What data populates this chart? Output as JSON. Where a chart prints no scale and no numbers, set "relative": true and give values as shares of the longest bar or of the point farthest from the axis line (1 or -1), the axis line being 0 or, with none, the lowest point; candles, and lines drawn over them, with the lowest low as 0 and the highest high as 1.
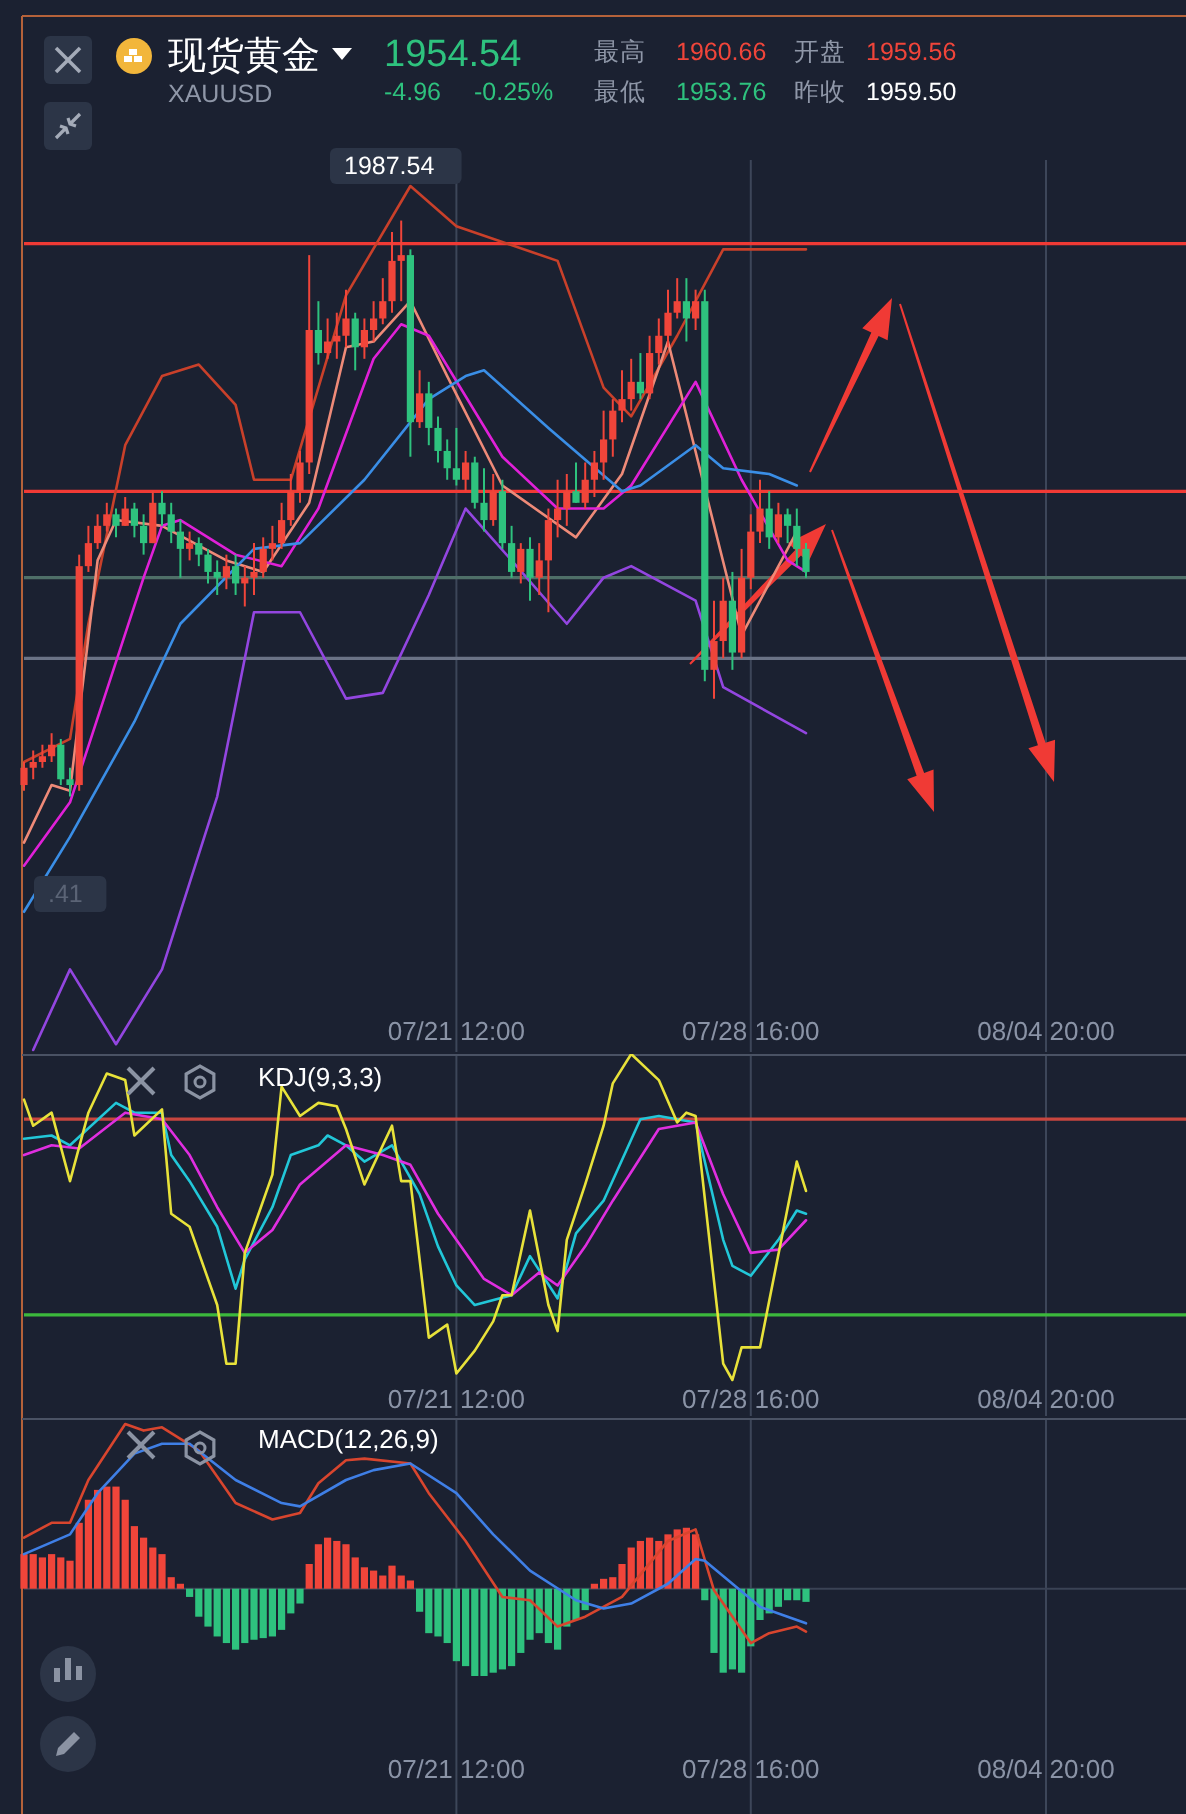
{
  "chart_data": [
    {
      "type": "candlestick",
      "title": "现货黄金",
      "subtitle": "XAUUSD",
      "relative": true,
      "grid": "x",
      "categories": [
        null,
        null,
        null,
        null,
        null,
        null,
        null,
        null,
        null,
        null,
        null,
        null,
        null,
        null,
        null,
        null,
        null,
        null,
        null,
        null,
        null,
        null,
        null,
        null,
        null,
        null,
        null,
        null,
        null,
        null,
        null,
        null,
        null,
        null,
        null,
        null,
        null,
        null,
        null,
        null,
        null,
        null,
        null,
        null,
        null,
        null,
        null,
        "07/21 12:00",
        null,
        null,
        null,
        null,
        null,
        null,
        null,
        null,
        null,
        null,
        null,
        null,
        null,
        null,
        null,
        null,
        null,
        null,
        null,
        null,
        null,
        null,
        null,
        null,
        null,
        null,
        null,
        null,
        null,
        null,
        null,
        "07/28 16:00",
        null,
        null,
        null,
        null,
        null,
        null
      ],
      "ohlc": [
        [
          0.02,
          0.06,
          0.01,
          0.05
        ],
        [
          0.05,
          0.08,
          0.03,
          0.06
        ],
        [
          0.06,
          0.09,
          0.05,
          0.07
        ],
        [
          0.07,
          0.11,
          0.06,
          0.09
        ],
        [
          0.09,
          0.1,
          0.02,
          0.03
        ],
        [
          0.03,
          0.05,
          0,
          0.02
        ],
        [
          0.02,
          0.42,
          0.01,
          0.4
        ],
        [
          0.4,
          0.47,
          0.39,
          0.44
        ],
        [
          0.44,
          0.49,
          0.43,
          0.47
        ],
        [
          0.47,
          0.51,
          0.46,
          0.49
        ],
        [
          0.49,
          0.5,
          0.45,
          0.47
        ],
        [
          0.47,
          0.52,
          0.47,
          0.5
        ],
        [
          0.5,
          0.51,
          0.45,
          0.47
        ],
        [
          0.47,
          0.49,
          0.42,
          0.44
        ],
        [
          0.44,
          0.53,
          0.44,
          0.51
        ],
        [
          0.51,
          0.53,
          0.47,
          0.49
        ],
        [
          0.49,
          0.51,
          0.44,
          0.46
        ],
        [
          0.46,
          0.48,
          0.38,
          0.43
        ],
        [
          0.43,
          0.46,
          0.41,
          0.44
        ],
        [
          0.44,
          0.45,
          0.4,
          0.42
        ],
        [
          0.42,
          0.43,
          0.37,
          0.39
        ],
        [
          0.39,
          0.41,
          0.35,
          0.38
        ],
        [
          0.38,
          0.42,
          0.36,
          0.4
        ],
        [
          0.4,
          0.42,
          0.35,
          0.37
        ],
        [
          0.37,
          0.4,
          0.33,
          0.38
        ],
        [
          0.38,
          0.44,
          0.35,
          0.39
        ],
        [
          0.39,
          0.45,
          0.38,
          0.43
        ],
        [
          0.43,
          0.47,
          0.41,
          0.44
        ],
        [
          0.44,
          0.51,
          0.43,
          0.48
        ],
        [
          0.48,
          0.56,
          0.47,
          0.53
        ],
        [
          0.53,
          0.6,
          0.51,
          0.58
        ],
        [
          0.58,
          0.94,
          0.56,
          0.81
        ],
        [
          0.81,
          0.86,
          0.75,
          0.77
        ],
        [
          0.77,
          0.83,
          0.76,
          0.79
        ],
        [
          0.79,
          0.84,
          0.76,
          0.8
        ],
        [
          0.8,
          0.88,
          0.78,
          0.83
        ],
        [
          0.83,
          0.84,
          0.74,
          0.78
        ],
        [
          0.78,
          0.83,
          0.76,
          0.81
        ],
        [
          0.81,
          0.86,
          0.79,
          0.83
        ],
        [
          0.83,
          0.9,
          0.82,
          0.86
        ],
        [
          0.86,
          0.98,
          0.84,
          0.93
        ],
        [
          0.93,
          1,
          0.86,
          0.94
        ],
        [
          0.94,
          0.95,
          0.59,
          0.65
        ],
        [
          0.65,
          0.74,
          0.64,
          0.7
        ],
        [
          0.7,
          0.72,
          0.61,
          0.64
        ],
        [
          0.64,
          0.66,
          0.58,
          0.6
        ],
        [
          0.6,
          0.62,
          0.55,
          0.57
        ],
        [
          0.57,
          0.64,
          0.54,
          0.55
        ],
        [
          0.55,
          0.6,
          0.53,
          0.58
        ],
        [
          0.58,
          0.59,
          0.5,
          0.51
        ],
        [
          0.51,
          0.57,
          0.46,
          0.48
        ],
        [
          0.48,
          0.56,
          0.47,
          0.53
        ],
        [
          0.53,
          0.55,
          0.43,
          0.44
        ],
        [
          0.44,
          0.47,
          0.38,
          0.39
        ],
        [
          0.39,
          0.44,
          0.37,
          0.43
        ],
        [
          0.43,
          0.45,
          0.34,
          0.38
        ],
        [
          0.38,
          0.44,
          0.35,
          0.41
        ],
        [
          0.41,
          0.5,
          0.32,
          0.48
        ],
        [
          0.48,
          0.55,
          0.45,
          0.5
        ],
        [
          0.5,
          0.56,
          0.47,
          0.53
        ],
        [
          0.53,
          0.58,
          0.51,
          0.51
        ],
        [
          0.51,
          0.58,
          0.5,
          0.55
        ],
        [
          0.55,
          0.6,
          0.52,
          0.58
        ],
        [
          0.58,
          0.67,
          0.55,
          0.62
        ],
        [
          0.62,
          0.69,
          0.59,
          0.67
        ],
        [
          0.67,
          0.74,
          0.65,
          0.69
        ],
        [
          0.69,
          0.76,
          0.67,
          0.72
        ],
        [
          0.72,
          0.77,
          0.69,
          0.7
        ],
        [
          0.7,
          0.8,
          0.69,
          0.77
        ],
        [
          0.77,
          0.83,
          0.75,
          0.8
        ],
        [
          0.8,
          0.88,
          0.78,
          0.84
        ],
        [
          0.84,
          0.9,
          0.83,
          0.86
        ],
        [
          0.86,
          0.9,
          0.79,
          0.83
        ],
        [
          0.83,
          0.88,
          0.81,
          0.86
        ],
        [
          0.86,
          0.88,
          0.2,
          0.22
        ],
        [
          0.22,
          0.34,
          0.17,
          0.27
        ],
        [
          0.27,
          0.38,
          0.24,
          0.34
        ],
        [
          0.34,
          0.39,
          0.22,
          0.25
        ],
        [
          0.25,
          0.43,
          0.24,
          0.38
        ],
        [
          0.38,
          0.49,
          0.36,
          0.46
        ],
        [
          0.46,
          0.55,
          0.44,
          0.5
        ],
        [
          0.5,
          0.53,
          0.43,
          0.45
        ],
        [
          0.45,
          0.51,
          0.44,
          0.49
        ],
        [
          0.49,
          0.5,
          0.44,
          0.47
        ],
        [
          0.47,
          0.5,
          0.4,
          0.43
        ],
        [
          0.43,
          0.44,
          0.38,
          0.39
        ]
      ],
      "series": [
        {
          "type": "line",
          "color": "#c9402a",
          "values": [
            0.06,
            null,
            null,
            null,
            null,
            0.1,
            null,
            0.3,
            null,
            null,
            null,
            0.61,
            null,
            null,
            null,
            0.73,
            null,
            null,
            null,
            0.75,
            null,
            null,
            null,
            0.68,
            null,
            0.55,
            null,
            null,
            null,
            0.55,
            null,
            null,
            null,
            null,
            null,
            0.87,
            null,
            null,
            null,
            null,
            null,
            null,
            1.06,
            null,
            null,
            null,
            null,
            0.99,
            null,
            null,
            null,
            null,
            null,
            null,
            null,
            null,
            null,
            null,
            0.93,
            null,
            null,
            null,
            null,
            0.71,
            null,
            null,
            0.66,
            null,
            null,
            null,
            null,
            0.8,
            null,
            null,
            null,
            null,
            0.95,
            null,
            null,
            null,
            null,
            null,
            null,
            null,
            null,
            0.95
          ]
        },
        {
          "type": "line",
          "color": "#ee8a78",
          "values": [
            -0.08,
            null,
            null,
            0.02,
            null,
            0.01,
            null,
            null,
            0.41,
            null,
            0.48,
            null,
            null,
            null,
            null,
            0.47,
            null,
            null,
            null,
            null,
            null,
            null,
            0.41,
            null,
            null,
            null,
            0.39,
            null,
            null,
            null,
            null,
            0.51,
            null,
            null,
            null,
            0.78,
            null,
            null,
            0.79,
            null,
            null,
            null,
            0.86,
            null,
            null,
            null,
            0.73,
            null,
            null,
            null,
            null,
            null,
            0.54,
            null,
            null,
            null,
            null,
            null,
            null,
            null,
            0.45,
            null,
            null,
            null,
            null,
            0.56,
            null,
            null,
            null,
            null,
            0.79,
            null,
            null,
            null,
            null,
            null,
            null,
            null,
            0.28,
            null,
            null,
            null,
            null,
            null,
            0.46,
            null
          ]
        },
        {
          "type": "line",
          "color": "#e020d8",
          "values": [
            -0.12,
            null,
            null,
            null,
            null,
            -0.01,
            null,
            null,
            null,
            null,
            null,
            null,
            null,
            0.38,
            null,
            0.47,
            null,
            0.48,
            null,
            null,
            null,
            null,
            null,
            0.42,
            null,
            null,
            null,
            null,
            0.4,
            null,
            null,
            null,
            0.5,
            null,
            null,
            null,
            null,
            null,
            0.76,
            null,
            null,
            0.82,
            null,
            null,
            0.8,
            null,
            null,
            null,
            null,
            null,
            null,
            null,
            0.59,
            null,
            null,
            null,
            null,
            null,
            0.5,
            null,
            null,
            null,
            null,
            0.5,
            null,
            null,
            0.54,
            null,
            null,
            null,
            null,
            null,
            null,
            0.72,
            null,
            null,
            null,
            null,
            0.55,
            null,
            null,
            null,
            null,
            0.41,
            null,
            0.39
          ]
        },
        {
          "type": "line",
          "color": "#3a8ee6",
          "values": [
            -0.2,
            null,
            null,
            null,
            null,
            -0.07,
            null,
            null,
            null,
            null,
            null,
            null,
            0.13,
            null,
            null,
            null,
            null,
            0.3,
            null,
            null,
            null,
            null,
            null,
            null,
            null,
            0.43,
            null,
            null,
            null,
            null,
            0.44,
            null,
            null,
            null,
            null,
            null,
            null,
            0.55,
            null,
            null,
            null,
            null,
            null,
            null,
            0.69,
            null,
            null,
            null,
            0.73,
            null,
            0.74,
            null,
            null,
            null,
            null,
            null,
            null,
            0.64,
            null,
            null,
            null,
            null,
            null,
            null,
            null,
            0.53,
            null,
            0.54,
            null,
            null,
            null,
            null,
            null,
            0.61,
            null,
            null,
            0.57,
            null,
            null,
            null,
            null,
            0.56,
            null,
            null,
            0.54,
            null
          ]
        },
        {
          "type": "line",
          "color": "#9346e0",
          "values": [
            null,
            -0.44,
            null,
            null,
            null,
            -0.3,
            null,
            null,
            null,
            null,
            -0.43,
            null,
            null,
            null,
            null,
            -0.3,
            null,
            null,
            null,
            null,
            null,
            0.0,
            null,
            null,
            null,
            0.32,
            null,
            null,
            null,
            null,
            0.32,
            null,
            null,
            null,
            null,
            0.17,
            null,
            null,
            null,
            0.18,
            null,
            null,
            null,
            null,
            0.35,
            null,
            null,
            null,
            0.5,
            null,
            null,
            null,
            null,
            0.41,
            null,
            null,
            null,
            null,
            null,
            0.3,
            null,
            null,
            null,
            0.38,
            null,
            null,
            0.4,
            null,
            null,
            null,
            null,
            null,
            null,
            0.34,
            null,
            null,
            0.19,
            null,
            null,
            null,
            null,
            null,
            null,
            null,
            null,
            0.11
          ]
        }
      ],
      "ref_lines": [
        {
          "axis": "y",
          "value": 0.96,
          "color": "#f03a35"
        },
        {
          "axis": "y",
          "value": 0.53,
          "color": "#f03a35"
        },
        {
          "axis": "y",
          "value": 0.38,
          "color": "#4f6f68"
        },
        {
          "axis": "y",
          "value": 0.24,
          "color": "#6b7386"
        }
      ],
      "annotations": [
        "1954.54",
        "-4.96",
        "-0.25%",
        "最高",
        "1960.66",
        "开盘",
        "1959.56",
        "最低",
        "1953.76",
        "昨收",
        "1959.50",
        "1987.54",
        ".41",
        "08/04 20:00"
      ]
    },
    {
      "type": "line",
      "title": "KDJ(9,3,3)",
      "relative": true,
      "grid": "x",
      "categories": [
        null,
        null,
        null,
        null,
        null,
        null,
        null,
        null,
        null,
        null,
        null,
        null,
        null,
        null,
        null,
        null,
        null,
        null,
        null,
        null,
        null,
        null,
        null,
        null,
        null,
        null,
        null,
        null,
        null,
        null,
        null,
        null,
        null,
        null,
        null,
        null,
        null,
        null,
        null,
        null,
        null,
        null,
        null,
        null,
        null,
        null,
        null,
        "07/21 12:00",
        null,
        null,
        null,
        null,
        null,
        null,
        null,
        null,
        null,
        null,
        null,
        null,
        null,
        null,
        null,
        null,
        null,
        null,
        null,
        null,
        null,
        null,
        null,
        null,
        null,
        null,
        null,
        null,
        null,
        null,
        null,
        "07/28 16:00",
        null,
        null,
        null,
        null,
        null,
        null
      ],
      "series": [
        {
          "color": "#22c7d8",
          "values": [
            0.74,
            null,
            null,
            0.75,
            null,
            0.72,
            null,
            null,
            null,
            null,
            0.85,
            null,
            0.82,
            null,
            null,
            0.82,
            0.69,
            null,
            0.61,
            null,
            null,
            0.47,
            null,
            0.28,
            0.37,
            null,
            null,
            0.53,
            null,
            0.69,
            null,
            null,
            0.72,
            0.75,
            null,
            0.72,
            null,
            0.67,
            null,
            null,
            0.72,
            null,
            null,
            0.57,
            null,
            0.41,
            null,
            0.29,
            null,
            0.23,
            null,
            null,
            null,
            0.26,
            null,
            0.38,
            null,
            null,
            0.25,
            null,
            0.45,
            null,
            null,
            0.55,
            null,
            null,
            null,
            0.8,
            null,
            0.81,
            null,
            null,
            null,
            0.79,
            null,
            null,
            0.43,
            0.35,
            null,
            0.32,
            null,
            null,
            0.43,
            null,
            0.52,
            0.51
          ]
        },
        {
          "color": "#e02ee0",
          "values": [
            0.69,
            null,
            null,
            0.72,
            null,
            null,
            0.71,
            null,
            null,
            null,
            null,
            0.82,
            null,
            null,
            null,
            0.8,
            null,
            null,
            0.69,
            null,
            null,
            0.53,
            null,
            null,
            0.39,
            null,
            null,
            0.46,
            null,
            null,
            0.6,
            null,
            null,
            null,
            null,
            0.72,
            null,
            null,
            null,
            0.69,
            null,
            null,
            0.66,
            null,
            null,
            0.51,
            null,
            null,
            null,
            null,
            0.31,
            null,
            null,
            0.26,
            null,
            null,
            0.33,
            null,
            0.29,
            null,
            null,
            0.41,
            null,
            null,
            0.55,
            null,
            null,
            null,
            null,
            0.77,
            null,
            0.78,
            null,
            0.79,
            null,
            null,
            0.57,
            null,
            null,
            0.39,
            null,
            null,
            0.4,
            null,
            null,
            0.49
          ]
        },
        {
          "color": "#e8e23a",
          "values": [
            0.86,
            0.78,
            null,
            0.82,
            null,
            0.61,
            null,
            0.82,
            null,
            0.94,
            null,
            0.92,
            0.75,
            null,
            null,
            0.83,
            0.51,
            null,
            0.47,
            null,
            null,
            0.23,
            0.05,
            0.05,
            0.39,
            null,
            null,
            0.63,
            0.9,
            null,
            0.81,
            null,
            0.85,
            null,
            0.84,
            0.77,
            null,
            0.6,
            null,
            null,
            0.78,
            0.61,
            0.61,
            null,
            0.13,
            null,
            0.17,
            0.02,
            null,
            0.09,
            null,
            0.18,
            0.26,
            0.26,
            null,
            0.52,
            null,
            0.23,
            0.15,
            0.43,
            null,
            0.6,
            null,
            0.78,
            0.91,
            null,
            1,
            null,
            null,
            0.92,
            null,
            0.79,
            0.82,
            0.81,
            null,
            null,
            0.05,
            0,
            0.1,
            null,
            0.1,
            null,
            null,
            null,
            0.67,
            0.58
          ]
        }
      ],
      "ref_lines": [
        {
          "axis": "y",
          "value": 0.8,
          "color": "#c8463f"
        },
        {
          "axis": "y",
          "value": 0.2,
          "color": "#3cb83c"
        }
      ],
      "annotations": [
        "08/04 20:00"
      ]
    },
    {
      "type": "bar",
      "title": "MACD(12,26,9)",
      "relative": true,
      "grid": "x",
      "categories": [
        null,
        null,
        null,
        null,
        null,
        null,
        null,
        null,
        null,
        null,
        null,
        null,
        null,
        null,
        null,
        null,
        null,
        null,
        null,
        null,
        null,
        null,
        null,
        null,
        null,
        null,
        null,
        null,
        null,
        null,
        null,
        null,
        null,
        null,
        null,
        null,
        null,
        null,
        null,
        null,
        null,
        null,
        null,
        null,
        null,
        null,
        null,
        "07/21 12:00",
        null,
        null,
        null,
        null,
        null,
        null,
        null,
        null,
        null,
        null,
        null,
        null,
        null,
        null,
        null,
        null,
        null,
        null,
        null,
        null,
        null,
        null,
        null,
        null,
        null,
        null,
        null,
        null,
        null,
        null,
        null,
        "07/28 16:00",
        null,
        null,
        null,
        null,
        null,
        null
      ],
      "series": [
        {
          "values": [
            0.21,
            0.21,
            0.19,
            0.21,
            0.19,
            0.17,
            0.4,
            0.54,
            0.6,
            0.62,
            0.62,
            0.54,
            0.38,
            0.31,
            0.25,
            0.21,
            0.07,
            0.03,
            -0.05,
            -0.17,
            -0.23,
            -0.29,
            -0.33,
            -0.37,
            -0.33,
            -0.31,
            -0.3,
            -0.29,
            -0.25,
            -0.15,
            -0.09,
            0.15,
            0.27,
            0.31,
            0.29,
            0.27,
            0.19,
            0.13,
            0.11,
            0.08,
            0.14,
            0.08,
            0.05,
            -0.14,
            -0.27,
            -0.29,
            -0.33,
            -0.44,
            -0.47,
            -0.53,
            -0.53,
            -0.51,
            -0.49,
            -0.47,
            -0.39,
            -0.31,
            -0.27,
            -0.33,
            -0.37,
            -0.23,
            -0.19,
            -0.13,
            0.03,
            0.06,
            0.07,
            0.15,
            0.25,
            0.29,
            0.31,
            0.29,
            0.33,
            0.36,
            0.37,
            0.33,
            -0.07,
            -0.39,
            -0.51,
            -0.49,
            -0.51,
            -0.35,
            -0.19,
            -0.15,
            -0.11,
            -0.07,
            -0.07,
            -0.08
          ],
          "colors": [
            "#f0453a",
            "#f0453a",
            "#f0453a",
            "#f0453a",
            "#f0453a",
            "#f0453a",
            "#f0453a",
            "#f0453a",
            "#f0453a",
            "#f0453a",
            "#f0453a",
            "#f0453a",
            "#f0453a",
            "#f0453a",
            "#f0453a",
            "#f0453a",
            "#f0453a",
            "#f0453a",
            "#2ec27e",
            "#2ec27e",
            "#2ec27e",
            "#2ec27e",
            "#2ec27e",
            "#2ec27e",
            "#2ec27e",
            "#2ec27e",
            "#2ec27e",
            "#2ec27e",
            "#2ec27e",
            "#2ec27e",
            "#2ec27e",
            "#f0453a",
            "#f0453a",
            "#f0453a",
            "#f0453a",
            "#f0453a",
            "#f0453a",
            "#f0453a",
            "#f0453a",
            "#f0453a",
            "#f0453a",
            "#f0453a",
            "#f0453a",
            "#2ec27e",
            "#2ec27e",
            "#2ec27e",
            "#2ec27e",
            "#2ec27e",
            "#2ec27e",
            "#2ec27e",
            "#2ec27e",
            "#2ec27e",
            "#2ec27e",
            "#2ec27e",
            "#2ec27e",
            "#2ec27e",
            "#2ec27e",
            "#2ec27e",
            "#2ec27e",
            "#2ec27e",
            "#2ec27e",
            "#2ec27e",
            "#f0453a",
            "#f0453a",
            "#f0453a",
            "#f0453a",
            "#f0453a",
            "#f0453a",
            "#f0453a",
            "#f0453a",
            "#f0453a",
            "#f0453a",
            "#f0453a",
            "#f0453a",
            "#2ec27e",
            "#2ec27e",
            "#2ec27e",
            "#2ec27e",
            "#2ec27e",
            "#2ec27e",
            "#2ec27e",
            "#2ec27e",
            "#2ec27e",
            "#2ec27e",
            "#2ec27e",
            "#2ec27e"
          ]
        },
        {
          "type": "line",
          "color": "#d8452e",
          "values": [
            0.31,
            null,
            null,
            0.4,
            null,
            0.4,
            null,
            0.66,
            null,
            null,
            null,
            1,
            null,
            0.96,
            null,
            0.98,
            null,
            null,
            null,
            0.84,
            null,
            null,
            null,
            0.52,
            null,
            null,
            null,
            0.42,
            null,
            null,
            0.46,
            null,
            0.64,
            null,
            null,
            0.78,
            null,
            0.79,
            null,
            null,
            null,
            null,
            0.76,
            null,
            0.58,
            null,
            null,
            null,
            0.29,
            null,
            null,
            null,
            -0.05,
            null,
            null,
            -0.07,
            null,
            null,
            -0.23,
            null,
            null,
            -0.17,
            null,
            null,
            null,
            -0.05,
            null,
            null,
            null,
            null,
            0.29,
            null,
            null,
            0.36,
            null,
            -0.01,
            null,
            null,
            null,
            -0.33,
            null,
            -0.27,
            null,
            null,
            -0.23,
            -0.26
          ]
        },
        {
          "type": "line",
          "color": "#3f7fe6",
          "values": [
            0.21,
            null,
            null,
            null,
            null,
            0.33,
            null,
            null,
            0.58,
            null,
            null,
            null,
            0.82,
            null,
            null,
            0.88,
            null,
            null,
            0.88,
            null,
            null,
            null,
            null,
            0.66,
            null,
            null,
            null,
            null,
            0.52,
            null,
            0.5,
            null,
            null,
            null,
            null,
            0.66,
            null,
            null,
            0.72,
            null,
            null,
            null,
            0.76,
            null,
            null,
            null,
            null,
            0.58,
            null,
            null,
            null,
            0.33,
            null,
            null,
            null,
            0.11,
            null,
            null,
            null,
            null,
            -0.07,
            null,
            null,
            -0.12,
            null,
            null,
            -0.09,
            null,
            null,
            null,
            0.03,
            null,
            null,
            0.18,
            0.17,
            null,
            null,
            0.03,
            null,
            null,
            -0.11,
            null,
            null,
            -0.17,
            null,
            -0.21
          ]
        }
      ],
      "annotations": [
        "08/04 20:00"
      ]
    }
  ]
}
